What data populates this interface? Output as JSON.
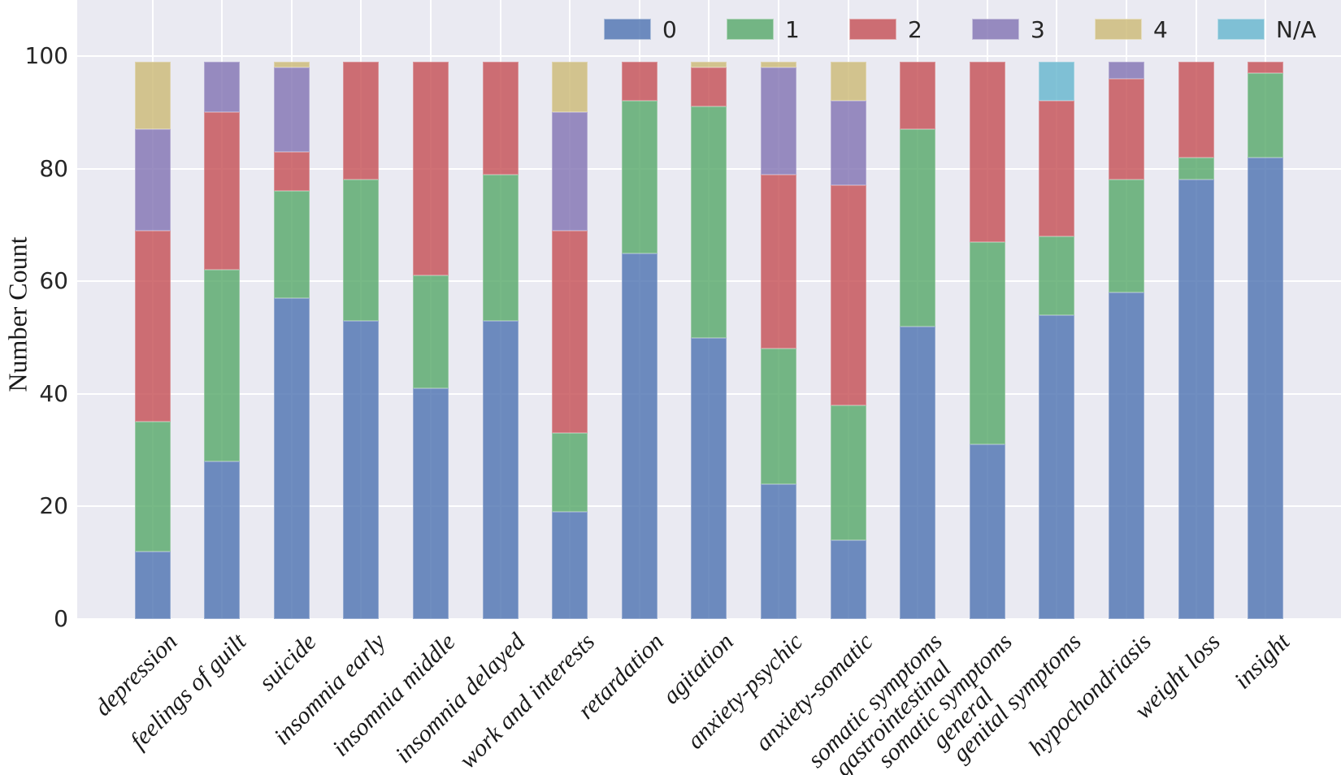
{
  "figure": {
    "background": "#ffffff"
  },
  "chart_data": {
    "type": "bar",
    "stacked": true,
    "orientation": "vertical",
    "title": "",
    "xlabel": "",
    "ylabel": "Number Count",
    "ylim": [
      0,
      100
    ],
    "yticks": [
      0,
      20,
      40,
      60,
      80,
      100
    ],
    "grid": true,
    "plot_background": "#eaeaf2",
    "grid_color": "#ffffff",
    "bar_alpha": 0.8,
    "legend": {
      "position": "top-inside",
      "entries": [
        "0",
        "1",
        "2",
        "3",
        "4",
        "N/A"
      ]
    },
    "categories": [
      "depression",
      "feelings of guilt",
      "suicide",
      "insomnia early",
      "insomnia middle",
      "insomnia delayed",
      "work and interests",
      "retardation",
      "agitation",
      "anxiety-psychic",
      "anxiety-somatic",
      "somatic symptoms\ngastrointestinal",
      "somatic symptoms\ngeneral",
      "genital symptoms",
      "hypochondriasis",
      "weight loss",
      "insight"
    ],
    "series": [
      {
        "name": "0",
        "color": "#4c72b0",
        "values": [
          12,
          28,
          57,
          53,
          41,
          53,
          19,
          65,
          50,
          24,
          14,
          52,
          31,
          54,
          58,
          78,
          82
        ]
      },
      {
        "name": "1",
        "color": "#55a868",
        "values": [
          23,
          34,
          19,
          25,
          20,
          26,
          14,
          27,
          41,
          24,
          24,
          35,
          36,
          14,
          20,
          4,
          15
        ]
      },
      {
        "name": "2",
        "color": "#c44e52",
        "values": [
          34,
          28,
          7,
          21,
          38,
          20,
          36,
          7,
          7,
          31,
          39,
          12,
          32,
          24,
          18,
          17,
          2
        ]
      },
      {
        "name": "3",
        "color": "#8172b2",
        "values": [
          18,
          9,
          15,
          0,
          0,
          0,
          21,
          0,
          0,
          19,
          15,
          0,
          0,
          0,
          3,
          0,
          0
        ]
      },
      {
        "name": "4",
        "color": "#ccb974",
        "values": [
          12,
          0,
          1,
          0,
          0,
          0,
          9,
          0,
          1,
          1,
          7,
          0,
          0,
          0,
          0,
          0,
          0
        ]
      },
      {
        "name": "N/A",
        "color": "#64b5cd",
        "values": [
          0,
          0,
          0,
          0,
          0,
          0,
          0,
          0,
          0,
          0,
          0,
          0,
          0,
          7,
          0,
          0,
          0
        ]
      }
    ]
  }
}
